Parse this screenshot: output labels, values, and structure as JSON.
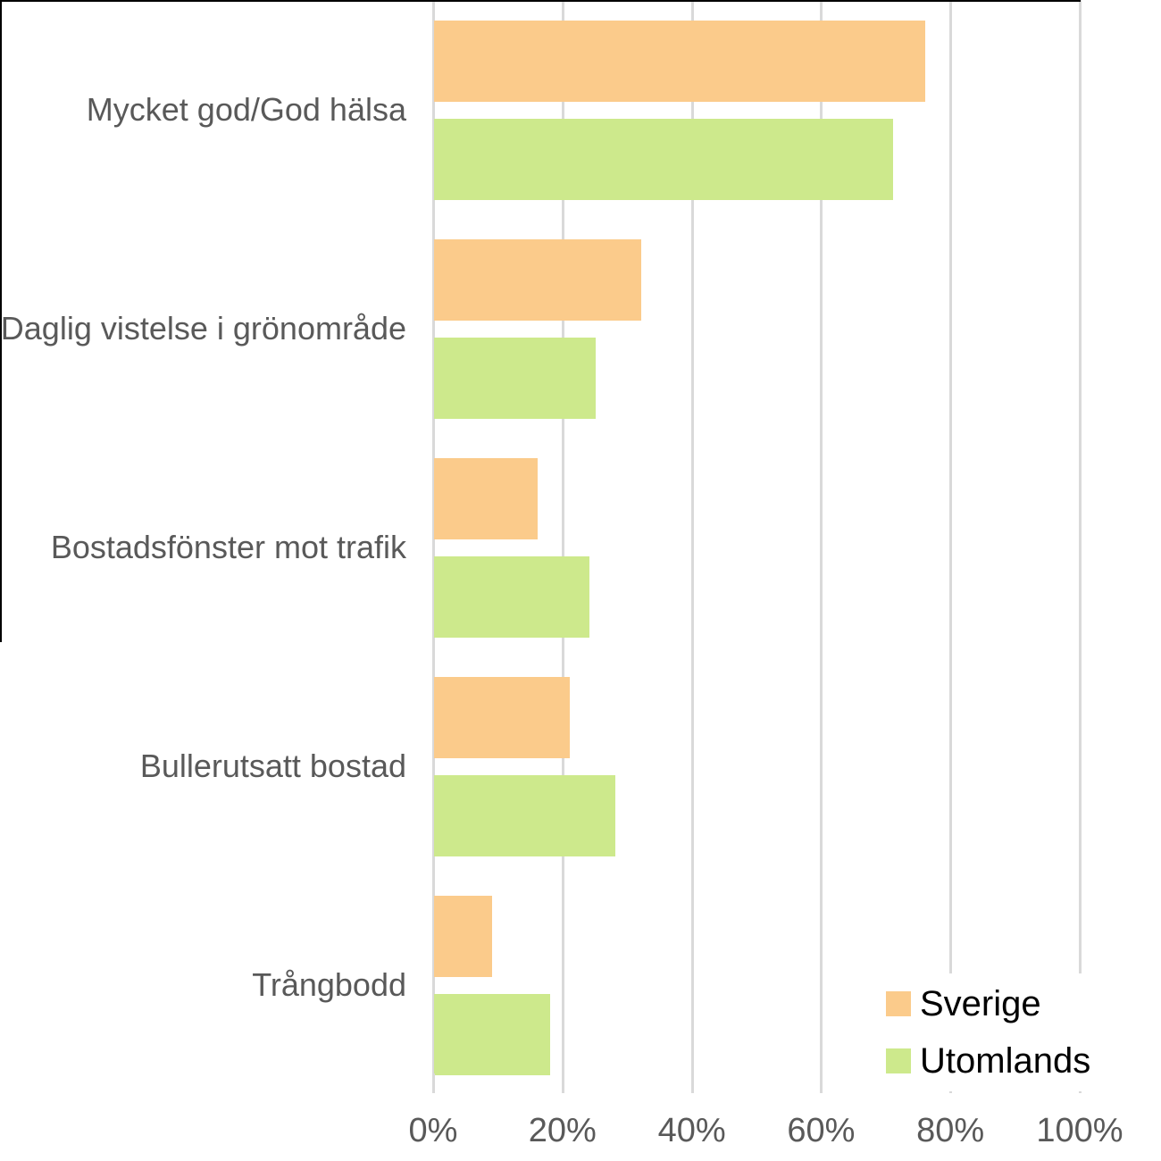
{
  "chart_data": {
    "type": "bar",
    "orientation": "horizontal",
    "title": "",
    "categories": [
      "Mycket god/God hälsa",
      "Daglig vistelse i grönområde",
      "Bostadsfönster mot trafik",
      "Bullerutsatt bostad",
      "Trångbodd"
    ],
    "series": [
      {
        "name": "Sverige",
        "color": "#FBCB8B",
        "values": [
          76,
          32,
          16,
          21,
          9
        ]
      },
      {
        "name": "Utomlands",
        "color": "#CDE98C",
        "values": [
          71,
          25,
          24,
          28,
          18
        ]
      }
    ],
    "x_axis": {
      "min": 0,
      "max": 100,
      "tick_values": [
        0,
        20,
        40,
        60,
        80,
        100
      ],
      "ticks": [
        "0%",
        "20%",
        "40%",
        "60%",
        "80%",
        "100%"
      ]
    },
    "grid": true,
    "legend_position": "bottom-right"
  },
  "colors": {
    "background": "#ffffff",
    "gridline": "#D9D9D9",
    "axis_text": "#595959",
    "category_text": "#595959",
    "legend_text": "#000000",
    "artifact_border": "#000000"
  }
}
